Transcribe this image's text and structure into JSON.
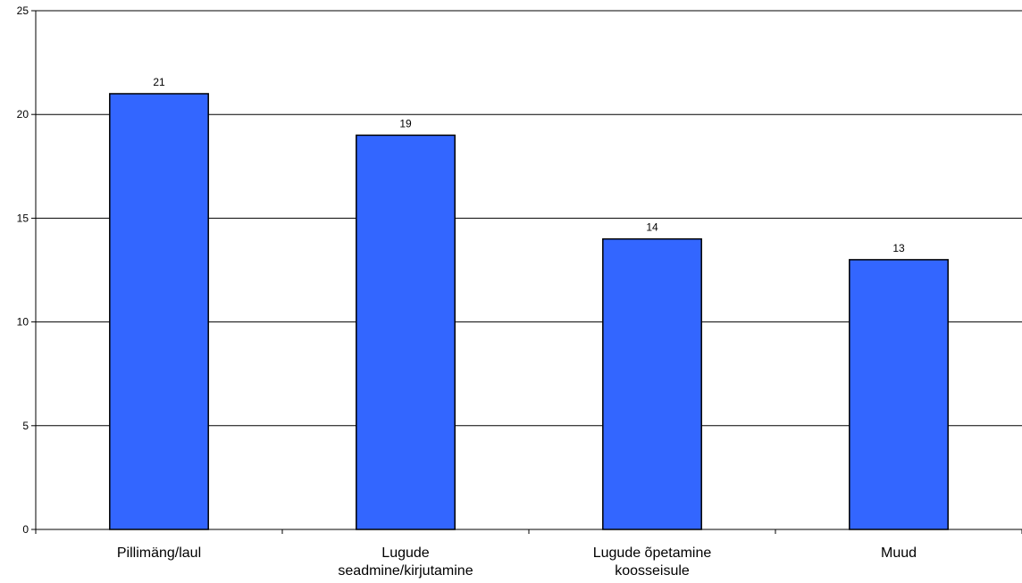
{
  "chart_data": {
    "type": "bar",
    "categories": [
      [
        "Pillimäng/laul"
      ],
      [
        "Lugude",
        "seadmine/kirjutamine"
      ],
      [
        "Lugude õpetamine",
        "koosseisule"
      ],
      [
        "Muud"
      ]
    ],
    "values": [
      21,
      19,
      14,
      13
    ],
    "value_labels": [
      "21",
      "19",
      "14",
      "13"
    ],
    "ylim": [
      0,
      25
    ],
    "yticks": [
      0,
      5,
      10,
      15,
      20,
      25
    ],
    "ytick_labels": [
      "0",
      "5",
      "10",
      "15",
      "20",
      "25"
    ],
    "title": "",
    "xlabel": "",
    "ylabel": "",
    "grid": true,
    "legend": "none",
    "bar_color": "#3366FF",
    "bar_stroke": "#000000",
    "grid_color": "#000000"
  }
}
